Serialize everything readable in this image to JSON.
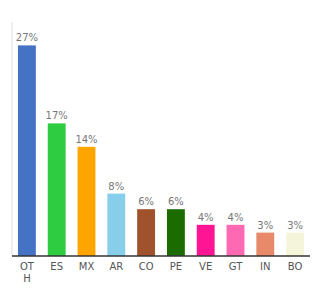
{
  "chart_data": {
    "type": "bar",
    "categories": [
      "OT\nH",
      "ES",
      "MX",
      "AR",
      "CO",
      "PE",
      "VE",
      "GT",
      "IN",
      "BO"
    ],
    "values": [
      27,
      17,
      14,
      8,
      6,
      6,
      4,
      4,
      3,
      3
    ],
    "value_labels": [
      "27%",
      "17%",
      "14%",
      "8%",
      "6%",
      "6%",
      "4%",
      "4%",
      "3%",
      "3%"
    ],
    "colors": [
      "#4472C4",
      "#2ECC40",
      "#FFA500",
      "#87CEEB",
      "#A0522D",
      "#1A6B00",
      "#FF1493",
      "#FF69B4",
      "#E8896A",
      "#F5F5DC"
    ],
    "ylim": [
      0,
      30
    ],
    "data_labels": true,
    "tick_labels": "x"
  }
}
